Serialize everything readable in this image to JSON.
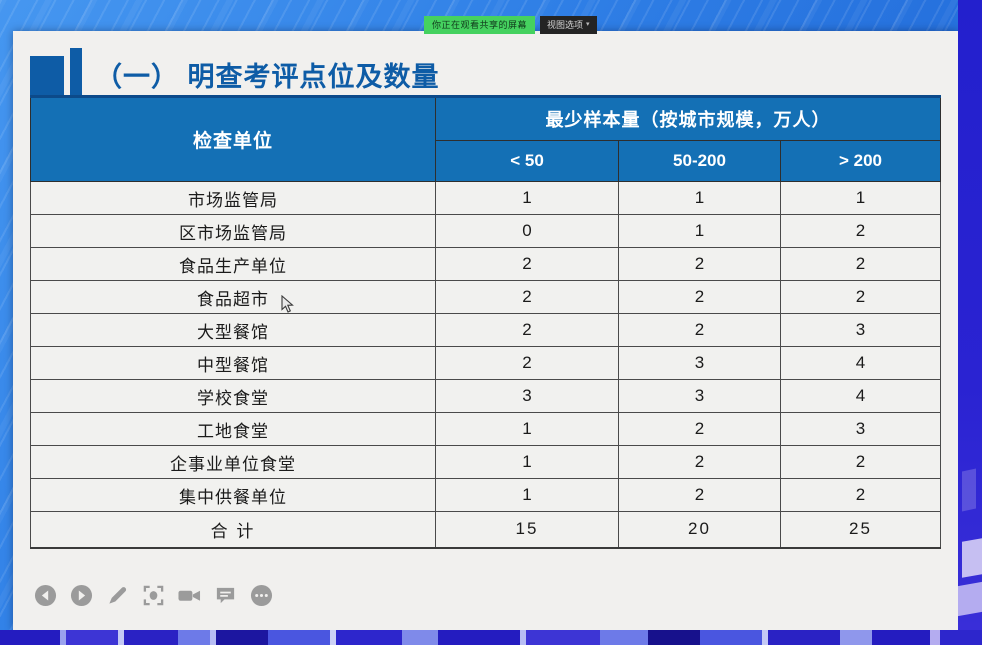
{
  "share_banner": {
    "message": "你正在观看共享的屏幕",
    "view_options": "视图选项",
    "caret": "▾"
  },
  "slide": {
    "title": "（一） 明查考评点位及数量",
    "toolbar_icons": [
      "previous",
      "next",
      "annotate-pen",
      "spotlight",
      "camera",
      "chat",
      "more"
    ]
  },
  "chart_data": {
    "type": "table",
    "title": "（一） 明查考评点位及数量",
    "row_header": "检查单位",
    "group_header": "最少样本量（按城市规模，万人）",
    "columns": [
      "< 50",
      "50-200",
      "> 200"
    ],
    "rows": [
      {
        "label": "市场监管局",
        "values": [
          1,
          1,
          1
        ]
      },
      {
        "label": "区市场监管局",
        "values": [
          0,
          1,
          2
        ]
      },
      {
        "label": "食品生产单位",
        "values": [
          2,
          2,
          2
        ]
      },
      {
        "label": "食品超市",
        "values": [
          2,
          2,
          2
        ]
      },
      {
        "label": "大型餐馆",
        "values": [
          2,
          2,
          3
        ]
      },
      {
        "label": "中型餐馆",
        "values": [
          2,
          3,
          4
        ]
      },
      {
        "label": "学校食堂",
        "values": [
          3,
          3,
          4
        ]
      },
      {
        "label": "工地食堂",
        "values": [
          1,
          2,
          3
        ]
      },
      {
        "label": "企事业单位食堂",
        "values": [
          1,
          2,
          2
        ]
      },
      {
        "label": "集中供餐单位",
        "values": [
          1,
          2,
          2
        ]
      },
      {
        "label": "合  计",
        "values": [
          15,
          20,
          25
        ],
        "total": true
      }
    ]
  },
  "colors": {
    "header-blue": "#1470b5",
    "title-blue": "#0e5ca6",
    "underline-navy": "#0c4a8a",
    "badge-green": "#45d15f",
    "slide-bg": "#f1f0ee",
    "row-bg": "#f1f1ef",
    "icon-gray": "#9b9b9b",
    "desktop-blue-1": "#4697f0",
    "desktop-blue-2": "#1a5fd2"
  }
}
